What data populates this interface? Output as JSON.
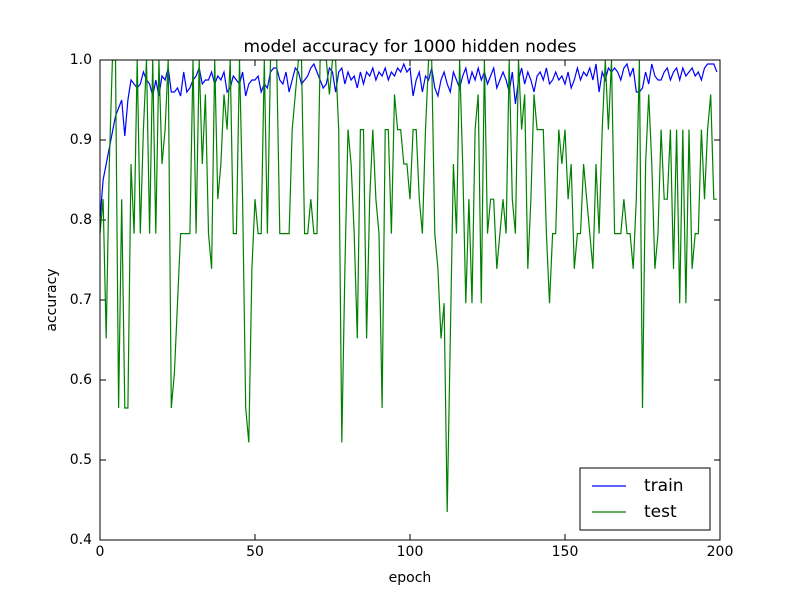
{
  "chart_data": {
    "type": "line",
    "title": "model accuracy for 1000 hidden nodes",
    "xlabel": "epoch",
    "ylabel": "accuracy",
    "xlim": [
      0,
      200
    ],
    "ylim": [
      0.4,
      1
    ],
    "xticks": [
      0,
      50,
      100,
      150,
      200
    ],
    "yticks": [
      0.4,
      0.5,
      0.6,
      0.7,
      0.8,
      0.9,
      {
        "value": 1,
        "label": "1.0"
      }
    ],
    "legend": "lower right",
    "grid": false,
    "x": [
      0,
      1,
      2,
      3,
      4,
      5,
      6,
      7,
      8,
      9,
      10,
      11,
      12,
      13,
      14,
      15,
      16,
      17,
      18,
      19,
      20,
      21,
      22,
      23,
      24,
      25,
      26,
      27,
      28,
      29,
      30,
      31,
      32,
      33,
      34,
      35,
      36,
      37,
      38,
      39,
      40,
      41,
      42,
      43,
      44,
      45,
      46,
      47,
      48,
      49,
      50,
      51,
      52,
      53,
      54,
      55,
      56,
      57,
      58,
      59,
      60,
      61,
      62,
      63,
      64,
      65,
      66,
      67,
      68,
      69,
      70,
      71,
      72,
      73,
      74,
      75,
      76,
      77,
      78,
      79,
      80,
      81,
      82,
      83,
      84,
      85,
      86,
      87,
      88,
      89,
      90,
      91,
      92,
      93,
      94,
      95,
      96,
      97,
      98,
      99,
      100,
      101,
      102,
      103,
      104,
      105,
      106,
      107,
      108,
      109,
      110,
      111,
      112,
      113,
      114,
      115,
      116,
      117,
      118,
      119,
      120,
      121,
      122,
      123,
      124,
      125,
      126,
      127,
      128,
      129,
      130,
      131,
      132,
      133,
      134,
      135,
      136,
      137,
      138,
      139,
      140,
      141,
      142,
      143,
      144,
      145,
      146,
      147,
      148,
      149,
      150,
      151,
      152,
      153,
      154,
      155,
      156,
      157,
      158,
      159,
      160,
      161,
      162,
      163,
      164,
      165,
      166,
      167,
      168,
      169,
      170,
      171,
      172,
      173,
      174,
      175,
      176,
      177,
      178,
      179,
      180,
      181,
      182,
      183,
      184,
      185,
      186,
      187,
      188,
      189,
      190,
      191,
      192,
      193,
      194,
      195,
      196,
      197,
      198,
      199
    ],
    "series": [
      {
        "name": "train",
        "color": "#0000ff",
        "values": [
          0.8,
          0.85,
          0.87,
          0.89,
          0.91,
          0.93,
          0.94,
          0.95,
          0.905,
          0.95,
          0.975,
          0.97,
          0.965,
          0.97,
          0.985,
          0.975,
          0.97,
          0.955,
          0.975,
          0.955,
          0.98,
          0.975,
          0.99,
          0.96,
          0.96,
          0.965,
          0.955,
          0.985,
          0.96,
          0.965,
          0.975,
          0.98,
          0.99,
          0.97,
          0.975,
          0.975,
          0.985,
          0.97,
          0.98,
          0.975,
          0.985,
          0.96,
          0.965,
          0.98,
          0.975,
          0.97,
          0.985,
          0.955,
          0.97,
          0.975,
          0.975,
          0.98,
          0.96,
          0.97,
          0.965,
          0.985,
          0.99,
          0.99,
          0.975,
          0.97,
          0.985,
          0.96,
          0.975,
          0.99,
          0.985,
          0.97,
          0.975,
          0.98,
          0.99,
          0.995,
          0.985,
          0.975,
          0.965,
          0.97,
          0.99,
          0.985,
          0.96,
          0.985,
          0.99,
          0.97,
          0.985,
          0.975,
          0.98,
          0.965,
          0.985,
          0.97,
          0.985,
          0.98,
          0.99,
          0.975,
          0.985,
          0.98,
          0.99,
          0.975,
          0.985,
          0.98,
          0.99,
          0.985,
          0.995,
          0.985,
          0.99,
          0.955,
          0.975,
          0.985,
          0.96,
          0.98,
          0.975,
          0.99,
          0.965,
          0.955,
          0.975,
          0.985,
          0.97,
          0.96,
          0.985,
          0.975,
          0.965,
          0.98,
          0.99,
          0.97,
          0.985,
          0.975,
          0.99,
          0.975,
          0.985,
          0.97,
          0.98,
          0.99,
          0.965,
          0.975,
          0.985,
          0.975,
          0.96,
          0.985,
          0.945,
          0.975,
          0.99,
          0.97,
          0.985,
          0.975,
          0.96,
          0.98,
          0.985,
          0.975,
          0.99,
          0.97,
          0.975,
          0.985,
          0.975,
          0.98,
          0.97,
          0.985,
          0.965,
          0.975,
          0.99,
          0.975,
          0.985,
          0.98,
          0.99,
          0.975,
          0.995,
          0.96,
          0.985,
          0.975,
          0.99,
          0.985,
          0.99,
          0.985,
          0.975,
          0.99,
          0.995,
          0.98,
          0.99,
          0.96,
          0.96,
          0.965,
          0.985,
          0.97,
          0.995,
          0.98,
          0.975,
          0.975,
          0.985,
          0.99,
          0.975,
          0.985,
          0.99,
          0.975,
          0.99,
          0.98,
          0.985,
          0.99,
          0.98,
          0.985,
          0.975,
          0.99,
          0.995,
          0.995,
          0.995,
          0.985
        ]
      },
      {
        "name": "test",
        "color": "#008000",
        "values": [
          0.783,
          0.826,
          0.652,
          0.87,
          1.0,
          1.0,
          0.565,
          0.826,
          0.565,
          0.565,
          0.87,
          0.783,
          1.0,
          0.783,
          0.913,
          1.0,
          0.783,
          1.0,
          0.783,
          1.0,
          0.87,
          0.913,
          1.0,
          0.565,
          0.609,
          0.696,
          0.783,
          0.783,
          0.783,
          0.783,
          1.0,
          0.783,
          1.0,
          0.87,
          0.957,
          0.783,
          0.739,
          1.0,
          0.826,
          0.87,
          0.957,
          0.913,
          1.0,
          0.783,
          0.783,
          1.0,
          0.826,
          0.565,
          0.522,
          0.739,
          0.826,
          0.783,
          0.783,
          1.0,
          0.783,
          1.0,
          1.0,
          1.0,
          0.783,
          0.783,
          0.783,
          0.783,
          0.913,
          0.957,
          1.0,
          1.0,
          0.783,
          0.783,
          0.826,
          0.783,
          0.783,
          1.0,
          1.0,
          1.0,
          0.957,
          1.0,
          1.0,
          0.913,
          0.522,
          0.739,
          0.913,
          0.87,
          0.783,
          0.652,
          0.913,
          0.913,
          0.652,
          0.826,
          0.913,
          0.826,
          0.783,
          0.565,
          0.913,
          0.913,
          0.783,
          0.957,
          0.913,
          0.913,
          0.87,
          0.87,
          0.826,
          0.913,
          0.913,
          0.826,
          0.783,
          0.913,
          1.0,
          1.0,
          0.783,
          0.739,
          0.652,
          0.696,
          0.435,
          0.652,
          0.87,
          0.783,
          1.0,
          0.87,
          0.696,
          0.826,
          0.696,
          0.913,
          0.957,
          0.696,
          1.0,
          0.783,
          0.826,
          0.826,
          0.739,
          0.783,
          0.826,
          0.783,
          1.0,
          0.826,
          0.783,
          1.0,
          0.913,
          0.957,
          0.739,
          0.826,
          0.957,
          0.913,
          0.913,
          0.913,
          0.783,
          0.696,
          0.783,
          0.783,
          0.913,
          0.87,
          0.913,
          0.826,
          0.87,
          0.739,
          0.783,
          0.783,
          0.87,
          0.826,
          0.783,
          0.739,
          0.87,
          0.783,
          0.913,
          1.0,
          0.913,
          1.0,
          0.783,
          0.783,
          0.783,
          0.826,
          0.783,
          0.783,
          0.739,
          0.826,
          1.0,
          0.565,
          0.87,
          0.957,
          0.87,
          0.739,
          0.783,
          0.913,
          0.826,
          0.826,
          0.913,
          0.739,
          0.913,
          0.696,
          0.913,
          0.696,
          0.913,
          0.739,
          0.783,
          0.783,
          0.913,
          0.826,
          0.913,
          0.957,
          0.826,
          0.826
        ]
      }
    ]
  }
}
